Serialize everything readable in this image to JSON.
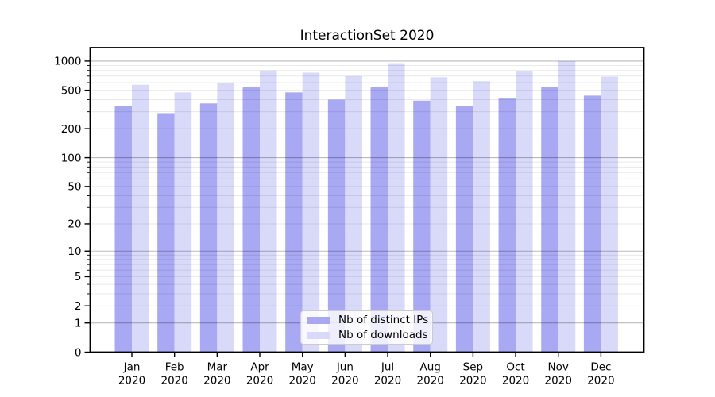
{
  "title": "InteractionSet 2020",
  "chart_data": {
    "type": "bar",
    "scale": "log1p",
    "title": "InteractionSet 2020",
    "categories": [
      "Jan",
      "Feb",
      "Mar",
      "Apr",
      "May",
      "Jun",
      "Jul",
      "Aug",
      "Sep",
      "Oct",
      "Nov",
      "Dec"
    ],
    "category_year": "2020",
    "series": [
      {
        "name": "Nb of distinct IPs",
        "color": "#a8a8f3",
        "values": [
          345,
          290,
          365,
          540,
          475,
          400,
          540,
          390,
          345,
          410,
          540,
          440
        ]
      },
      {
        "name": "Nb of downloads",
        "color": "#d9d9fa",
        "values": [
          570,
          475,
          595,
          800,
          760,
          700,
          950,
          680,
          620,
          780,
          1000,
          690
        ]
      }
    ],
    "yticks": [
      0,
      1,
      2,
      5,
      10,
      20,
      50,
      100,
      200,
      500,
      1000
    ],
    "minor_gridlines": [
      2,
      3,
      4,
      5,
      6,
      7,
      8,
      9,
      20,
      30,
      40,
      50,
      60,
      70,
      80,
      90,
      200,
      300,
      400,
      500,
      600,
      700,
      800,
      900
    ],
    "major_gridlines": [
      1,
      10,
      100,
      1000
    ],
    "ylim": [
      0,
      1000
    ],
    "xlabel": "",
    "ylabel": "",
    "grid": true,
    "legend_position": "lower center"
  },
  "colors": {
    "background": "#ffffff",
    "spine": "#000000",
    "tick_text": "#000000",
    "grid_minor": "rgba(0,0,0,0.085)",
    "grid_major": "rgba(0,0,0,0.27)",
    "legend_border": "#cccccc",
    "legend_bg": "rgba(255,255,255,0.8)"
  }
}
